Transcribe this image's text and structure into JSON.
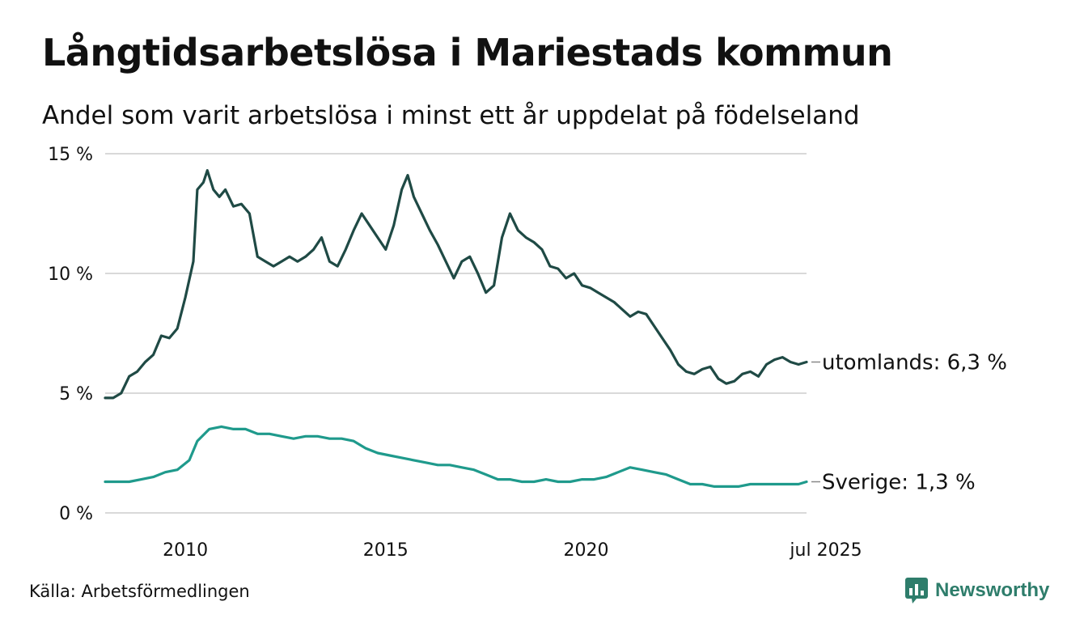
{
  "title": "Långtidsarbetslösa i Mariestads kommun",
  "subtitle": "Andel som varit arbetslösa i minst ett år uppdelat på födelseland",
  "source": "Källa: Arbetsförmedlingen",
  "brand": "Newsworthy",
  "colors": {
    "utomlands": "#1f4a45",
    "sverige": "#1f9a8c",
    "grid": "#d9d9d9",
    "brand": "#2e7d6b"
  },
  "chart_data": {
    "type": "line",
    "y_ticks": [
      {
        "value": 0,
        "label": "0 %"
      },
      {
        "value": 5,
        "label": "5 %"
      },
      {
        "value": 10,
        "label": "10 %"
      },
      {
        "value": 15,
        "label": "15 %"
      }
    ],
    "x_ticks": [
      {
        "value": 2010,
        "label": "2010"
      },
      {
        "value": 2015,
        "label": "2015"
      },
      {
        "value": 2020,
        "label": "2020"
      },
      {
        "value": 2025.5,
        "label": "jul 2025"
      }
    ],
    "xlim": [
      2008.0,
      2025.5
    ],
    "ylim": [
      0,
      15
    ],
    "grid": true,
    "series": [
      {
        "name": "utomlands",
        "end_label": "utomlands: 6,3 %",
        "points": [
          [
            2008.0,
            4.8
          ],
          [
            2008.2,
            4.8
          ],
          [
            2008.4,
            5.0
          ],
          [
            2008.6,
            5.7
          ],
          [
            2008.8,
            5.9
          ],
          [
            2009.0,
            6.3
          ],
          [
            2009.2,
            6.6
          ],
          [
            2009.4,
            7.4
          ],
          [
            2009.6,
            7.3
          ],
          [
            2009.8,
            7.7
          ],
          [
            2010.0,
            9.0
          ],
          [
            2010.2,
            10.5
          ],
          [
            2010.3,
            13.5
          ],
          [
            2010.45,
            13.8
          ],
          [
            2010.55,
            14.3
          ],
          [
            2010.7,
            13.5
          ],
          [
            2010.85,
            13.2
          ],
          [
            2011.0,
            13.5
          ],
          [
            2011.2,
            12.8
          ],
          [
            2011.4,
            12.9
          ],
          [
            2011.6,
            12.5
          ],
          [
            2011.8,
            10.7
          ],
          [
            2012.0,
            10.5
          ],
          [
            2012.2,
            10.3
          ],
          [
            2012.4,
            10.5
          ],
          [
            2012.6,
            10.7
          ],
          [
            2012.8,
            10.5
          ],
          [
            2013.0,
            10.7
          ],
          [
            2013.2,
            11.0
          ],
          [
            2013.4,
            11.5
          ],
          [
            2013.6,
            10.5
          ],
          [
            2013.8,
            10.3
          ],
          [
            2014.0,
            11.0
          ],
          [
            2014.2,
            11.8
          ],
          [
            2014.4,
            12.5
          ],
          [
            2014.6,
            12.0
          ],
          [
            2014.8,
            11.5
          ],
          [
            2015.0,
            11.0
          ],
          [
            2015.2,
            12.0
          ],
          [
            2015.4,
            13.5
          ],
          [
            2015.55,
            14.1
          ],
          [
            2015.7,
            13.2
          ],
          [
            2015.9,
            12.5
          ],
          [
            2016.1,
            11.8
          ],
          [
            2016.3,
            11.2
          ],
          [
            2016.5,
            10.5
          ],
          [
            2016.7,
            9.8
          ],
          [
            2016.9,
            10.5
          ],
          [
            2017.1,
            10.7
          ],
          [
            2017.3,
            10.0
          ],
          [
            2017.5,
            9.2
          ],
          [
            2017.7,
            9.5
          ],
          [
            2017.9,
            11.5
          ],
          [
            2018.1,
            12.5
          ],
          [
            2018.3,
            11.8
          ],
          [
            2018.5,
            11.5
          ],
          [
            2018.7,
            11.3
          ],
          [
            2018.9,
            11.0
          ],
          [
            2019.1,
            10.3
          ],
          [
            2019.3,
            10.2
          ],
          [
            2019.5,
            9.8
          ],
          [
            2019.7,
            10.0
          ],
          [
            2019.9,
            9.5
          ],
          [
            2020.1,
            9.4
          ],
          [
            2020.3,
            9.2
          ],
          [
            2020.5,
            9.0
          ],
          [
            2020.7,
            8.8
          ],
          [
            2020.9,
            8.5
          ],
          [
            2021.1,
            8.2
          ],
          [
            2021.3,
            8.4
          ],
          [
            2021.5,
            8.3
          ],
          [
            2021.7,
            7.8
          ],
          [
            2021.9,
            7.3
          ],
          [
            2022.1,
            6.8
          ],
          [
            2022.3,
            6.2
          ],
          [
            2022.5,
            5.9
          ],
          [
            2022.7,
            5.8
          ],
          [
            2022.9,
            6.0
          ],
          [
            2023.1,
            6.1
          ],
          [
            2023.3,
            5.6
          ],
          [
            2023.5,
            5.4
          ],
          [
            2023.7,
            5.5
          ],
          [
            2023.9,
            5.8
          ],
          [
            2024.1,
            5.9
          ],
          [
            2024.3,
            5.7
          ],
          [
            2024.5,
            6.2
          ],
          [
            2024.7,
            6.4
          ],
          [
            2024.9,
            6.5
          ],
          [
            2025.1,
            6.3
          ],
          [
            2025.3,
            6.2
          ],
          [
            2025.5,
            6.3
          ]
        ]
      },
      {
        "name": "Sverige",
        "end_label": "Sverige: 1,3 %",
        "points": [
          [
            2008.0,
            1.3
          ],
          [
            2008.3,
            1.3
          ],
          [
            2008.6,
            1.3
          ],
          [
            2008.9,
            1.4
          ],
          [
            2009.2,
            1.5
          ],
          [
            2009.5,
            1.7
          ],
          [
            2009.8,
            1.8
          ],
          [
            2010.1,
            2.2
          ],
          [
            2010.3,
            3.0
          ],
          [
            2010.6,
            3.5
          ],
          [
            2010.9,
            3.6
          ],
          [
            2011.2,
            3.5
          ],
          [
            2011.5,
            3.5
          ],
          [
            2011.8,
            3.3
          ],
          [
            2012.1,
            3.3
          ],
          [
            2012.4,
            3.2
          ],
          [
            2012.7,
            3.1
          ],
          [
            2013.0,
            3.2
          ],
          [
            2013.3,
            3.2
          ],
          [
            2013.6,
            3.1
          ],
          [
            2013.9,
            3.1
          ],
          [
            2014.2,
            3.0
          ],
          [
            2014.5,
            2.7
          ],
          [
            2014.8,
            2.5
          ],
          [
            2015.1,
            2.4
          ],
          [
            2015.4,
            2.3
          ],
          [
            2015.7,
            2.2
          ],
          [
            2016.0,
            2.1
          ],
          [
            2016.3,
            2.0
          ],
          [
            2016.6,
            2.0
          ],
          [
            2016.9,
            1.9
          ],
          [
            2017.2,
            1.8
          ],
          [
            2017.5,
            1.6
          ],
          [
            2017.8,
            1.4
          ],
          [
            2018.1,
            1.4
          ],
          [
            2018.4,
            1.3
          ],
          [
            2018.7,
            1.3
          ],
          [
            2019.0,
            1.4
          ],
          [
            2019.3,
            1.3
          ],
          [
            2019.6,
            1.3
          ],
          [
            2019.9,
            1.4
          ],
          [
            2020.2,
            1.4
          ],
          [
            2020.5,
            1.5
          ],
          [
            2020.8,
            1.7
          ],
          [
            2021.1,
            1.9
          ],
          [
            2021.4,
            1.8
          ],
          [
            2021.7,
            1.7
          ],
          [
            2022.0,
            1.6
          ],
          [
            2022.3,
            1.4
          ],
          [
            2022.6,
            1.2
          ],
          [
            2022.9,
            1.2
          ],
          [
            2023.2,
            1.1
          ],
          [
            2023.5,
            1.1
          ],
          [
            2023.8,
            1.1
          ],
          [
            2024.1,
            1.2
          ],
          [
            2024.4,
            1.2
          ],
          [
            2024.7,
            1.2
          ],
          [
            2025.0,
            1.2
          ],
          [
            2025.3,
            1.2
          ],
          [
            2025.5,
            1.3
          ]
        ]
      }
    ]
  }
}
